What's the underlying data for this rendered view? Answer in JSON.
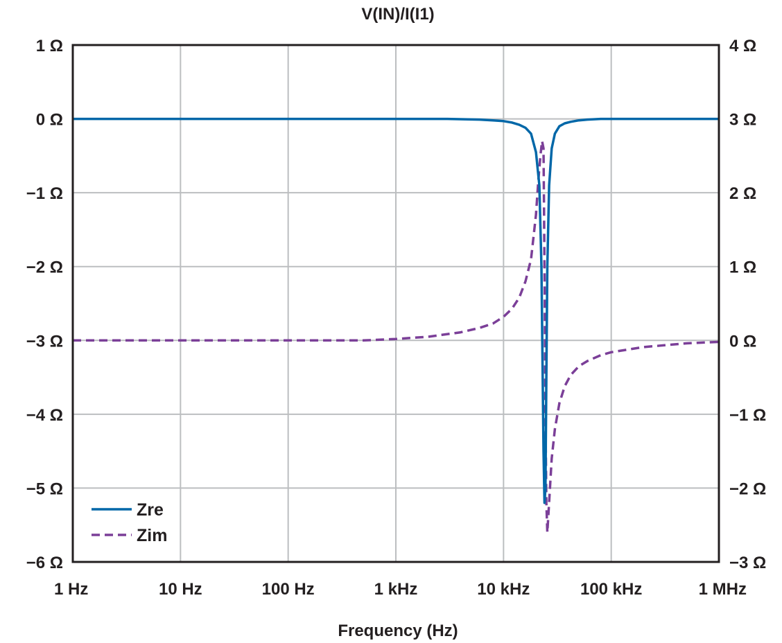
{
  "chart_data": {
    "type": "line",
    "title": "V(IN)/I(I1)",
    "xlabel": "Frequency (Hz)",
    "x_scale": "log",
    "xlim": [
      1,
      1000000
    ],
    "x_ticks": [
      {
        "value": 1,
        "label": "1 Hz"
      },
      {
        "value": 10,
        "label": "10 Hz"
      },
      {
        "value": 100,
        "label": "100 Hz"
      },
      {
        "value": 1000,
        "label": "1 kHz"
      },
      {
        "value": 10000,
        "label": "10 kHz"
      },
      {
        "value": 100000,
        "label": "100 kHz"
      },
      {
        "value": 1000000,
        "label": "1 MHz"
      }
    ],
    "ylim_left": [
      -6,
      1
    ],
    "y_ticks_left": [
      {
        "value": 1,
        "label": "1 Ω"
      },
      {
        "value": 0,
        "label": "0 Ω"
      },
      {
        "value": -1,
        "label": "−1 Ω"
      },
      {
        "value": -2,
        "label": "−2 Ω"
      },
      {
        "value": -3,
        "label": "−3 Ω"
      },
      {
        "value": -4,
        "label": "−4 Ω"
      },
      {
        "value": -5,
        "label": "−5 Ω"
      },
      {
        "value": -6,
        "label": "−6 Ω"
      }
    ],
    "ylim_right": [
      -3,
      4
    ],
    "y_ticks_right": [
      {
        "value": 4,
        "label": "4 Ω"
      },
      {
        "value": 3,
        "label": "3 Ω"
      },
      {
        "value": 2,
        "label": "2 Ω"
      },
      {
        "value": 1,
        "label": "1 Ω"
      },
      {
        "value": 0,
        "label": "0 Ω"
      },
      {
        "value": -1,
        "label": "−1 Ω"
      },
      {
        "value": -2,
        "label": "−2 Ω"
      },
      {
        "value": -3,
        "label": "−3 Ω"
      }
    ],
    "grid": true,
    "legend_position": "bottom-left",
    "series": [
      {
        "name": "Zre",
        "axis": "left",
        "color": "#0067a8",
        "dash": "solid",
        "x": [
          1,
          10,
          100,
          1000,
          3000,
          6000,
          8000,
          10000,
          12000,
          14000,
          16000,
          18000,
          20000,
          21500,
          22500,
          23500,
          24000,
          24500,
          25000,
          25500,
          26500,
          28000,
          30000,
          33000,
          37000,
          42000,
          50000,
          60000,
          80000,
          100000,
          1000000
        ],
        "y": [
          0,
          0,
          0,
          0,
          0,
          -0.01,
          -0.02,
          -0.03,
          -0.05,
          -0.08,
          -0.12,
          -0.2,
          -0.45,
          -0.9,
          -2.0,
          -4.5,
          -5.2,
          -5.0,
          -3.5,
          -2.0,
          -0.9,
          -0.4,
          -0.2,
          -0.1,
          -0.06,
          -0.04,
          -0.02,
          -0.01,
          0,
          0,
          0
        ]
      },
      {
        "name": "Zim",
        "axis": "right",
        "color": "#7b3f98",
        "dash": "dashed",
        "x": [
          1,
          10,
          100,
          500,
          1000,
          2000,
          4000,
          6000,
          8000,
          10000,
          12000,
          14000,
          16000,
          18000,
          20000,
          21000,
          22000,
          22800,
          23500,
          24000,
          24500,
          25000,
          25500,
          26000,
          27000,
          28000,
          30000,
          33000,
          37000,
          42000,
          50000,
          60000,
          80000,
          100000,
          200000,
          500000,
          1000000
        ],
        "y": [
          0,
          0,
          0,
          0,
          0.02,
          0.05,
          0.11,
          0.17,
          0.23,
          0.32,
          0.43,
          0.58,
          0.8,
          1.1,
          1.7,
          2.15,
          2.5,
          2.7,
          2.6,
          1.0,
          -1.0,
          -2.2,
          -2.6,
          -2.4,
          -2.0,
          -1.6,
          -1.2,
          -0.85,
          -0.62,
          -0.47,
          -0.35,
          -0.28,
          -0.2,
          -0.16,
          -0.09,
          -0.04,
          -0.02
        ]
      }
    ]
  }
}
